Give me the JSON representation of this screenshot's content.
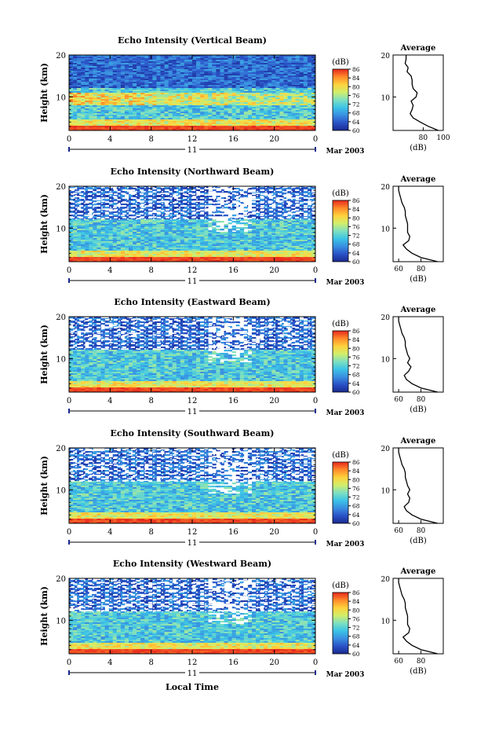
{
  "figure": {
    "colorbar_unit": "(dB)",
    "colorbar_ticks": [
      "86",
      "84",
      "80",
      "76",
      "72",
      "68",
      "64",
      "60"
    ],
    "colorbar_stops": [
      "#1a2a8f",
      "#2a52c7",
      "#3a8fe0",
      "#3cc4e6",
      "#7fe0c0",
      "#d2ee6a",
      "#ffd23c",
      "#ff8a2a",
      "#e8281e"
    ],
    "time_ticks": [
      "0",
      "4",
      "8",
      "12",
      "16",
      "20",
      "0"
    ],
    "day_label": "11",
    "date_label": "Mar 2003",
    "height_label": "Height (km)",
    "height_ticks": [
      "20",
      "10"
    ],
    "avg_title": "Average",
    "avg_xlabel": "(dB)",
    "xlabel_bottom": "Local Time"
  },
  "chart_data": [
    {
      "type": "heatmap",
      "title": "Echo Intensity (Vertical Beam)",
      "x": "Local Time (h), 0–24",
      "ylabel": "Height (km)",
      "ylim": [
        2,
        20
      ],
      "zlabel": "(dB)",
      "zlim": [
        60,
        88
      ],
      "average_profile": {
        "title": "Average",
        "xlabel": "(dB)",
        "xlim": [
          50,
          100
        ],
        "xticks": [
          "80",
          "100"
        ],
        "height_km": [
          2,
          3,
          4,
          5,
          6,
          7,
          8,
          9,
          10,
          11,
          12,
          13,
          14,
          15,
          16,
          17,
          18,
          19,
          20
        ],
        "intensity_db": [
          95,
          85,
          77,
          70,
          67,
          69,
          70,
          68,
          73,
          74,
          70,
          69,
          69,
          68,
          64,
          65,
          62,
          63,
          63
        ]
      }
    },
    {
      "type": "heatmap",
      "title": "Echo Intensity (Northward Beam)",
      "x": "Local Time (h), 0–24",
      "ylabel": "Height (km)",
      "ylim": [
        2,
        20
      ],
      "zlabel": "(dB)",
      "zlim": [
        60,
        88
      ],
      "average_profile": {
        "title": "Average",
        "xlabel": "(dB)",
        "xlim": [
          55,
          100
        ],
        "xticks": [
          "60",
          "80"
        ],
        "height_km": [
          2,
          3,
          4,
          5,
          6,
          7,
          8,
          9,
          10,
          11,
          12,
          13,
          14,
          15,
          16,
          17,
          18,
          19,
          20
        ],
        "intensity_db": [
          95,
          80,
          72,
          67,
          64,
          69,
          70,
          68,
          68,
          68,
          67,
          66,
          66,
          65,
          63,
          62,
          61,
          60,
          60
        ]
      }
    },
    {
      "type": "heatmap",
      "title": "Echo Intensity (Eastward Beam)",
      "x": "Local Time (h), 0–24",
      "ylabel": "Height (km)",
      "ylim": [
        2,
        20
      ],
      "zlabel": "(dB)",
      "zlim": [
        60,
        88
      ],
      "average_profile": {
        "title": "Average",
        "xlabel": "(dB)",
        "xlim": [
          55,
          100
        ],
        "xticks": [
          "60",
          "80"
        ],
        "height_km": [
          2,
          3,
          4,
          5,
          6,
          7,
          8,
          9,
          10,
          11,
          12,
          13,
          14,
          15,
          16,
          17,
          18,
          19,
          20
        ],
        "intensity_db": [
          95,
          80,
          72,
          67,
          65,
          69,
          71,
          68,
          70,
          68,
          67,
          66,
          66,
          65,
          63,
          62,
          61,
          60,
          60
        ]
      }
    },
    {
      "type": "heatmap",
      "title": "Echo Intensity (Southward Beam)",
      "x": "Local Time (h), 0–24",
      "ylabel": "Height (km)",
      "ylim": [
        2,
        20
      ],
      "zlabel": "(dB)",
      "zlim": [
        60,
        88
      ],
      "average_profile": {
        "title": "Average",
        "xlabel": "(dB)",
        "xlim": [
          55,
          100
        ],
        "xticks": [
          "60",
          "80"
        ],
        "height_km": [
          2,
          3,
          4,
          5,
          6,
          7,
          8,
          9,
          10,
          11,
          12,
          13,
          14,
          15,
          16,
          17,
          18,
          19,
          20
        ],
        "intensity_db": [
          95,
          80,
          72,
          67,
          65,
          69,
          70,
          68,
          70,
          68,
          67,
          66,
          66,
          65,
          63,
          62,
          61,
          60,
          60
        ]
      }
    },
    {
      "type": "heatmap",
      "title": "Echo Intensity (Westward Beam)",
      "x": "Local Time (h), 0–24",
      "ylabel": "Height (km)",
      "ylim": [
        2,
        20
      ],
      "zlabel": "(dB)",
      "zlim": [
        60,
        88
      ],
      "average_profile": {
        "title": "Average",
        "xlabel": "(dB)",
        "xlim": [
          55,
          100
        ],
        "xticks": [
          "60",
          "80"
        ],
        "height_km": [
          2,
          3,
          4,
          5,
          6,
          7,
          8,
          9,
          10,
          11,
          12,
          13,
          14,
          15,
          16,
          17,
          18,
          19,
          20
        ],
        "intensity_db": [
          95,
          80,
          72,
          67,
          64,
          69,
          70,
          68,
          68,
          68,
          67,
          66,
          66,
          65,
          63,
          62,
          61,
          60,
          60
        ]
      }
    }
  ]
}
